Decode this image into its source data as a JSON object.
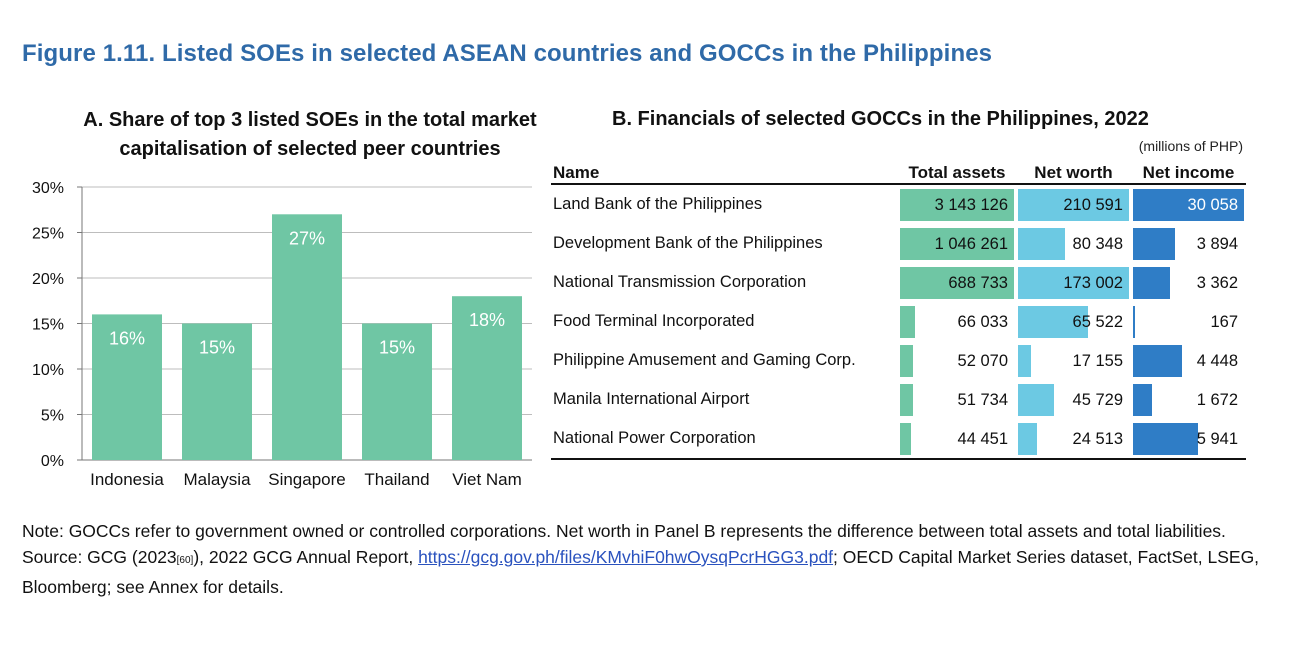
{
  "figure_title": "Figure 1.11. Listed SOEs in selected ASEAN countries and GOCCs in the Philippines",
  "colors": {
    "title": "#2f6aa8",
    "bar_green": "#6fc6a4",
    "bar_light_blue": "#6cc9e3",
    "bar_dark_blue": "#2f7dc6",
    "grid": "#bdbdbd"
  },
  "chart_data": [
    {
      "type": "bar",
      "title": "A.  Share of top 3 listed SOEs in the total market capitalisation of selected peer countries",
      "categories": [
        "Indonesia",
        "Malaysia",
        "Singapore",
        "Thailand",
        "Viet Nam"
      ],
      "values": [
        16,
        15,
        27,
        15,
        18
      ],
      "data_labels": [
        "16%",
        "15%",
        "27%",
        "15%",
        "18%"
      ],
      "y_ticks": [
        "30%",
        "25%",
        "20%",
        "15%",
        "10%",
        "5%",
        "0%"
      ],
      "ylim": [
        0,
        30
      ],
      "xlabel": "",
      "ylabel": "",
      "grid": true
    },
    {
      "type": "table",
      "title": "B.  Financials of selected GOCCs in the Philippines, 2022",
      "unit": "(millions of PHP)",
      "columns": [
        "Name",
        "Total assets",
        "Net worth",
        "Net income"
      ],
      "rows": [
        {
          "name": "Land Bank of the Philippines",
          "total_assets": "3 143 126",
          "net_worth": "210 591",
          "net_income": "30 058"
        },
        {
          "name": "Development Bank of the Philippines",
          "total_assets": "1 046 261",
          "net_worth": "80 348",
          "net_income": "3 894"
        },
        {
          "name": "National Transmission Corporation",
          "total_assets": "688 733",
          "net_worth": "173 002",
          "net_income": "3 362"
        },
        {
          "name": "Food Terminal Incorporated",
          "total_assets": "66 033",
          "net_worth": "65 522",
          "net_income": "167"
        },
        {
          "name": "Philippine Amusement and Gaming Corp.",
          "total_assets": "52 070",
          "net_worth": "17 155",
          "net_income": "4 448"
        },
        {
          "name": "Manila International Airport",
          "total_assets": "51 734",
          "net_worth": "45 729",
          "net_income": "1 672"
        },
        {
          "name": "National Power Corporation",
          "total_assets": "44 451",
          "net_worth": "24 513",
          "net_income": "5 941"
        }
      ],
      "bar_fraction_of_column": {
        "total_assets": [
          1.0,
          1.0,
          1.0,
          0.13,
          0.11,
          0.11,
          0.1
        ],
        "net_worth": [
          1.0,
          0.42,
          1.0,
          0.63,
          0.12,
          0.32,
          0.17
        ],
        "net_income": [
          1.0,
          0.38,
          0.33,
          0.02,
          0.44,
          0.17,
          0.59
        ]
      }
    }
  ],
  "note": {
    "line1": "Note: GOCCs refer to government owned or controlled corporations. Net worth in Panel B represents the difference between total assets and total liabilities.",
    "source_prefix": "Source: GCG (2023",
    "source_ref": "[60]",
    "source_mid": "), 2022 GCG Annual Report, ",
    "source_link": "https://gcg.gov.ph/files/KMvhiF0hwOysqPcrHGG3.pdf",
    "source_suffix": "; OECD Capital Market Series dataset, FactSet, LSEG, Bloomberg; see Annex for details."
  }
}
